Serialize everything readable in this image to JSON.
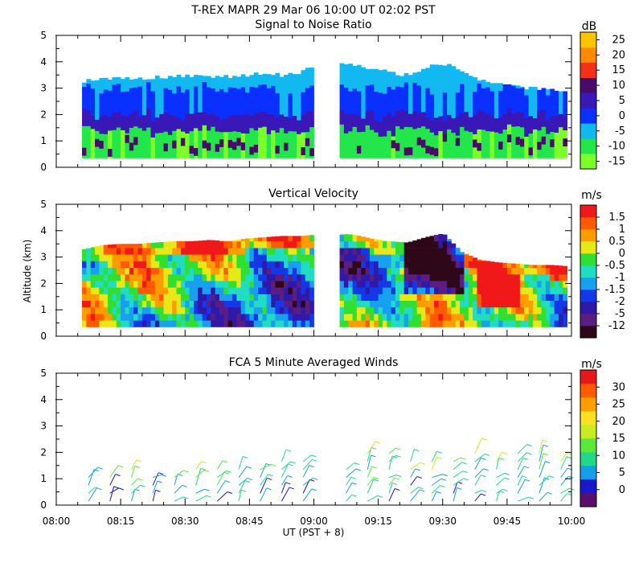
{
  "chart_data": [
    {
      "type": "heatmap",
      "header": "T-REX   MAPR 29 Mar 06   10:00 UT   02:02   PST",
      "title": "Signal to Noise Ratio",
      "ylabel": "",
      "ylim": [
        0,
        5
      ],
      "yticks": [
        "0",
        "1",
        "2",
        "3",
        "4",
        "5"
      ],
      "xlim_minutes": [
        480,
        600
      ],
      "data_gap_minutes": [
        540,
        546
      ],
      "data_top_km": [
        3.25,
        3.35,
        3.4,
        3.35,
        3.4,
        3.45,
        3.45,
        3.4,
        3.45,
        3.5,
        3.55,
        3.5,
        3.6,
        3.85,
        4.05,
        3.9,
        3.75,
        3.6,
        3.5,
        3.8,
        3.95,
        3.6,
        3.35,
        3.15,
        3.05,
        3.0,
        2.95,
        2.9
      ],
      "bands_km": [
        {
          "top": 1.4,
          "bin": 1
        },
        {
          "top": 2.0,
          "bin": 4
        },
        {
          "top": 3.0,
          "bin": 3
        },
        {
          "top": 99,
          "bin": 2
        }
      ],
      "colorbar": {
        "unit": "dB",
        "labels": [
          "-15",
          "-10",
          "-5",
          "0",
          "5",
          "10",
          "15",
          "20",
          "25"
        ],
        "colors": [
          "#7cff28",
          "#22e64a",
          "#12b8f0",
          "#0a30ff",
          "#3a18b8",
          "#4a0a6a",
          "#f53018",
          "#ff8a00",
          "#ffc400"
        ]
      }
    },
    {
      "type": "heatmap",
      "title": "Vertical Velocity",
      "ylabel": "Altitude (km)",
      "ylim": [
        0,
        5
      ],
      "yticks": [
        "0",
        "1",
        "2",
        "3",
        "4",
        "5"
      ],
      "xlim_minutes": [
        480,
        600
      ],
      "data_gap_minutes": [
        540,
        546
      ],
      "data_top_km": [
        3.3,
        3.45,
        3.5,
        3.5,
        3.55,
        3.6,
        3.6,
        3.65,
        3.6,
        3.7,
        3.75,
        3.8,
        3.8,
        3.85,
        3.9,
        3.85,
        3.7,
        3.6,
        3.55,
        3.75,
        3.9,
        3.2,
        2.9,
        2.8,
        2.75,
        2.7,
        2.7,
        2.65
      ],
      "colorbar": {
        "unit": "m/s",
        "labels": [
          "-12",
          "-5",
          "-2",
          "-1.5",
          "-1",
          "-0.5",
          "0",
          "0.5",
          "1",
          "1.5"
        ],
        "colors": [
          "#2e0818",
          "#5a1d80",
          "#3018a8",
          "#1438e8",
          "#18a0f0",
          "#20dcc0",
          "#30e030",
          "#e8e818",
          "#ff9c00",
          "#ff5a00",
          "#f01818"
        ]
      }
    },
    {
      "type": "scatter",
      "title": "FCA 5 Minute Averaged Winds",
      "ylabel": "",
      "ylim": [
        0,
        5
      ],
      "yticks": [
        "0",
        "1",
        "2",
        "3",
        "4",
        "5"
      ],
      "xlabel": "UT  (PST + 8)",
      "xticks": [
        "08:00",
        "08:15",
        "08:30",
        "08:45",
        "09:00",
        "09:15",
        "09:30",
        "09:45",
        "10:00"
      ],
      "barb_times_minutes": [
        487.5,
        492.5,
        497.5,
        502.5,
        507.5,
        512.5,
        517.5,
        522.5,
        527.5,
        532.5,
        537.5,
        547.5,
        552.5,
        557.5,
        562.5,
        567.5,
        572.5,
        577.5,
        582.5,
        587.5,
        592.5,
        597.5
      ],
      "barb_levels_km": [
        0.15,
        0.45,
        0.75,
        1.05,
        1.35,
        1.65,
        1.95,
        2.25
      ],
      "colorbar": {
        "unit": "m/s",
        "labels": [
          "0",
          "5",
          "10",
          "15",
          "20",
          "25",
          "30"
        ],
        "colors": [
          "#5a106a",
          "#1a18c8",
          "#14a0e8",
          "#20d888",
          "#5ce83a",
          "#c8ec20",
          "#ffe020",
          "#ffa000",
          "#ff5a00",
          "#e81818"
        ]
      }
    }
  ]
}
